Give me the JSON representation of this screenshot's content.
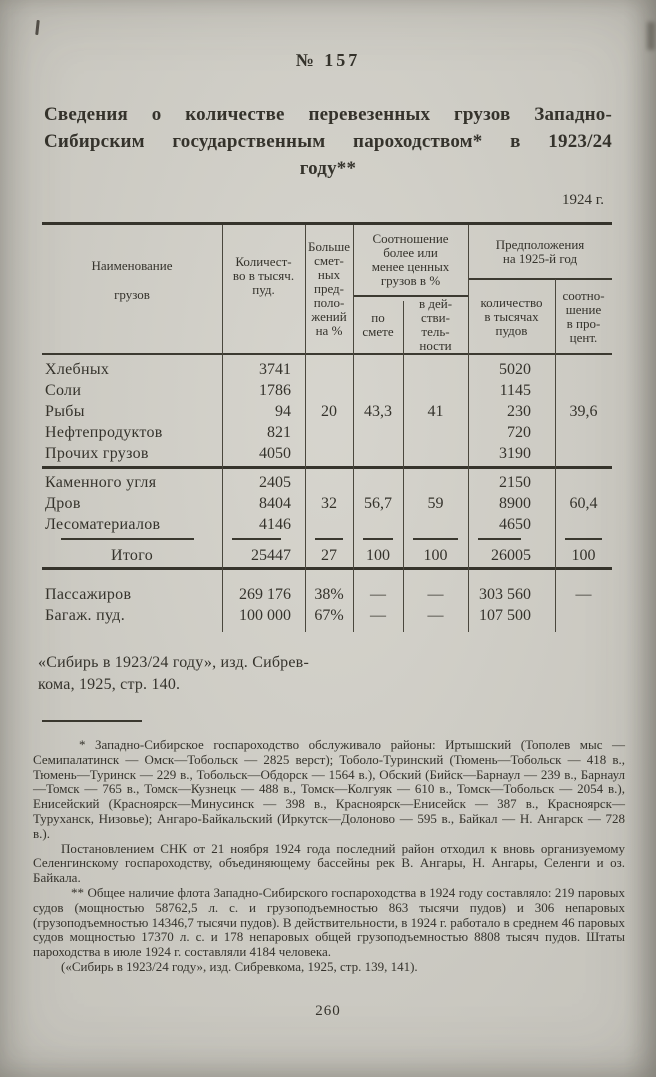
{
  "colors": {
    "paper": "#d2d0c8",
    "ink": "#35332c"
  },
  "page": {
    "doc_number": "№ 157",
    "title_lines": [
      "Сведения о количестве перевезенных грузов Западно-",
      "Сибирским государственным пароходством* в 1923/24",
      "году**"
    ],
    "date_label": "1924 г.",
    "page_number": "260"
  },
  "table": {
    "header": {
      "name": "Наименование",
      "name2": "грузов",
      "qty": "Количест-\nво в тысяч.\nпуд.",
      "over": "Больше\nсмет-\nных\nпред-\nполо-\nжений\nна %",
      "ratio_group": "Соотношение\nболее или\nменее ценных\nгрузов в %",
      "by_estimate": "по\nсмете",
      "in_fact": "в дей-\nстви-\nтель-\nности",
      "plan_group": "Предположения\nна 1925-й год",
      "plan_qty": "количество\nв тысячах\nпудов",
      "plan_ratio": "соотно-\nшение\nв про-\nцент."
    },
    "group1": {
      "rows": [
        {
          "name": "Хлебных",
          "qty": "3741",
          "plan": "5020"
        },
        {
          "name": "Соли",
          "qty": "1786",
          "plan": "1145"
        },
        {
          "name": "Рыбы",
          "qty": "94",
          "plan": "230"
        },
        {
          "name": "Нефтепродуктов",
          "qty": "821",
          "plan": "720"
        },
        {
          "name": "Прочих грузов",
          "qty": "4050",
          "plan": "3190"
        }
      ],
      "over": "20",
      "by_estimate": "43,3",
      "in_fact": "41",
      "plan_ratio": "39,6"
    },
    "group2": {
      "rows": [
        {
          "name": "Каменного угля",
          "qty": "2405",
          "plan": "2150"
        },
        {
          "name": "Дров",
          "qty": "8404",
          "plan": "8900"
        },
        {
          "name": "Лесоматериалов",
          "qty": "4146",
          "plan": "4650"
        }
      ],
      "over": "32",
      "by_estimate": "56,7",
      "in_fact": "59",
      "plan_ratio": "60,4"
    },
    "total": {
      "name": "Итого",
      "qty": "25447",
      "over": "27",
      "by_estimate": "100",
      "in_fact": "100",
      "plan": "26005",
      "plan_ratio": "100"
    },
    "extra_rows": [
      {
        "name": "Пассажиров",
        "qty": "269 176",
        "over": "38%",
        "by_estimate": "—",
        "in_fact": "—",
        "plan": "303 560",
        "plan_ratio": "—"
      },
      {
        "name": "Багаж. пуд.",
        "qty": "100 000",
        "over": "67%",
        "by_estimate": "—",
        "in_fact": "—",
        "plan": "107 500",
        "plan_ratio": ""
      }
    ]
  },
  "source": {
    "line1": "«Сибирь в 1923/24 году», изд. Сибрев-",
    "line2": "кома, 1925, стр. 140."
  },
  "footnotes": {
    "para1": "* Западно-Сибирское госпароходство обслуживало районы: Иртышский (Тополев мыс — Семипалатинск — Омск—Тобольск — 2825 верст); Тоболо-Туринский (Тюмень—Тобольск — 418 в., Тюмень—Туринск — 229 в., Тобольск—Обдорск — 1564 в.), Обский (Бийск—Барнаул — 239 в., Барнаул—Томск — 765 в., Томск—Кузнецк — 488 в., Томск—Колгуяк — 610 в., Томск—Тобольск — 2054 в.), Енисейский (Красноярск—Минусинск — 398 в., Красноярск—Енисейск — 387 в., Красноярск—Туруханск, Низовье); Ангаро-Байкальский (Иркутск—Долоново — 595 в., Байкал — Н. Ангарск — 728 в.).",
    "para2": "Постановлением СНК от 21 ноября 1924 года последний район отходил к вновь организуемому Селенгинскому госпароходству, объединяющему бассейны рек В. Ангары, Н. Ангары, Селенги и оз. Байкала.",
    "para3": "** Общее наличие флота Западно-Сибирского госпароходства в 1924 году составляло: 219 паровых судов (мощностью 58762,5 л. с. и грузоподъемностью 863 тысячи пудов) и 306 непаровых (грузоподъемностью 14346,7 тысячи пудов). В действительности, в 1924 г. работало в среднем 46 паровых судов мощностью 17370 л. с. и 178 непаровых общей грузоподъемностью 8808 тысяч пудов. Штаты пароходства в июле 1924 г. составляли 4184 человека.",
    "para4": "(«Сибирь в 1923/24 году», изд. Сибревкома, 1925, стр. 139, 141)."
  }
}
